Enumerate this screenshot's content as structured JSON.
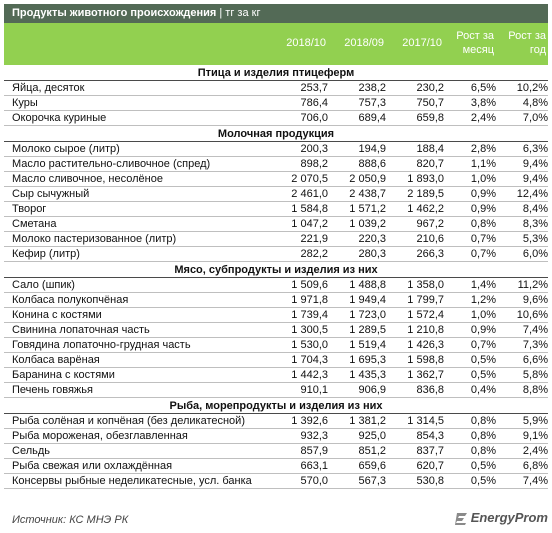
{
  "header": {
    "title": "Продукты животного происхождения",
    "unit": "| тг за кг",
    "columns": [
      "2018/10",
      "2018/09",
      "2017/10",
      "Рост за месяц",
      "Рост за год"
    ]
  },
  "sections": [
    {
      "title": "Птица и изделия птицеферм",
      "rows": [
        {
          "name": "Яйца, десяток",
          "v1": "253,7",
          "v2": "238,2",
          "v3": "230,2",
          "m": "6,5%",
          "y": "10,2%"
        },
        {
          "name": "Куры",
          "v1": "786,4",
          "v2": "757,3",
          "v3": "750,7",
          "m": "3,8%",
          "y": "4,8%"
        },
        {
          "name": "Окорочка куриные",
          "v1": "706,0",
          "v2": "689,4",
          "v3": "659,8",
          "m": "2,4%",
          "y": "7,0%"
        }
      ]
    },
    {
      "title": "Молочная продукция",
      "rows": [
        {
          "name": "Молоко сырое (литр)",
          "v1": "200,3",
          "v2": "194,9",
          "v3": "188,4",
          "m": "2,8%",
          "y": "6,3%"
        },
        {
          "name": "Масло растительно-сливочное (спред)",
          "v1": "898,2",
          "v2": "888,6",
          "v3": "820,7",
          "m": "1,1%",
          "y": "9,4%"
        },
        {
          "name": "Масло сливочное, несолёное",
          "v1": "2 070,5",
          "v2": "2 050,9",
          "v3": "1 893,0",
          "m": "1,0%",
          "y": "9,4%"
        },
        {
          "name": "Сыр сычужный",
          "v1": "2 461,0",
          "v2": "2 438,7",
          "v3": "2 189,5",
          "m": "0,9%",
          "y": "12,4%"
        },
        {
          "name": "Творог",
          "v1": "1 584,8",
          "v2": "1 571,2",
          "v3": "1 462,2",
          "m": "0,9%",
          "y": "8,4%"
        },
        {
          "name": "Сметана",
          "v1": "1 047,2",
          "v2": "1 039,2",
          "v3": "967,2",
          "m": "0,8%",
          "y": "8,3%"
        },
        {
          "name": "Молоко пастеризованное (литр)",
          "v1": "221,9",
          "v2": "220,3",
          "v3": "210,6",
          "m": "0,7%",
          "y": "5,3%"
        },
        {
          "name": "Кефир (литр)",
          "v1": "282,2",
          "v2": "280,3",
          "v3": "266,3",
          "m": "0,7%",
          "y": "6,0%"
        }
      ]
    },
    {
      "title": "Мясо, субпродукты и изделия из них",
      "rows": [
        {
          "name": "Сало (шпик)",
          "v1": "1 509,6",
          "v2": "1 488,8",
          "v3": "1 358,0",
          "m": "1,4%",
          "y": "11,2%"
        },
        {
          "name": "Колбаса полукопчёная",
          "v1": "1 971,8",
          "v2": "1 949,4",
          "v3": "1 799,7",
          "m": "1,2%",
          "y": "9,6%"
        },
        {
          "name": "Конина с костями",
          "v1": "1 739,4",
          "v2": "1 723,0",
          "v3": "1 572,4",
          "m": "1,0%",
          "y": "10,6%"
        },
        {
          "name": "Свинина лопаточная часть",
          "v1": "1 300,5",
          "v2": "1 289,5",
          "v3": "1 210,8",
          "m": "0,9%",
          "y": "7,4%"
        },
        {
          "name": "Говядина лопаточно-грудная часть",
          "v1": "1 530,0",
          "v2": "1 519,4",
          "v3": "1 426,3",
          "m": "0,7%",
          "y": "7,3%"
        },
        {
          "name": "Колбаса варёная",
          "v1": "1 704,3",
          "v2": "1 695,3",
          "v3": "1 598,8",
          "m": "0,5%",
          "y": "6,6%"
        },
        {
          "name": "Баранина с костями",
          "v1": "1 442,3",
          "v2": "1 435,3",
          "v3": "1 362,7",
          "m": "0,5%",
          "y": "5,8%"
        },
        {
          "name": "Печень говяжья",
          "v1": "910,1",
          "v2": "906,9",
          "v3": "836,8",
          "m": "0,4%",
          "y": "8,8%"
        }
      ]
    },
    {
      "title": "Рыба, морепродукты и изделия из них",
      "rows": [
        {
          "name": "Рыба солёная и копчёная (без деликатесной)",
          "v1": "1 392,6",
          "v2": "1 381,2",
          "v3": "1 314,5",
          "m": "0,8%",
          "y": "5,9%"
        },
        {
          "name": "Рыба мороженая, обезглавленная",
          "v1": "932,3",
          "v2": "925,0",
          "v3": "854,3",
          "m": "0,8%",
          "y": "9,1%"
        },
        {
          "name": "Сельдь",
          "v1": "857,9",
          "v2": "851,2",
          "v3": "837,7",
          "m": "0,8%",
          "y": "2,4%"
        },
        {
          "name": "Рыба свежая или охлаждённая",
          "v1": "663,1",
          "v2": "659,6",
          "v3": "620,7",
          "m": "0,5%",
          "y": "6,8%"
        },
        {
          "name": "Консервы рыбные неделикатесные, усл. банка",
          "v1": "570,0",
          "v2": "567,3",
          "v3": "530,8",
          "m": "0,5%",
          "y": "7,4%"
        }
      ]
    }
  ],
  "footer": {
    "source": "Источник: КС МНЭ РК",
    "logo_text": "EnergyProm",
    "logo_icon": "energyprom-logo-icon"
  },
  "colors": {
    "title_bg": "#536a56",
    "header_bg": "#92d050"
  }
}
